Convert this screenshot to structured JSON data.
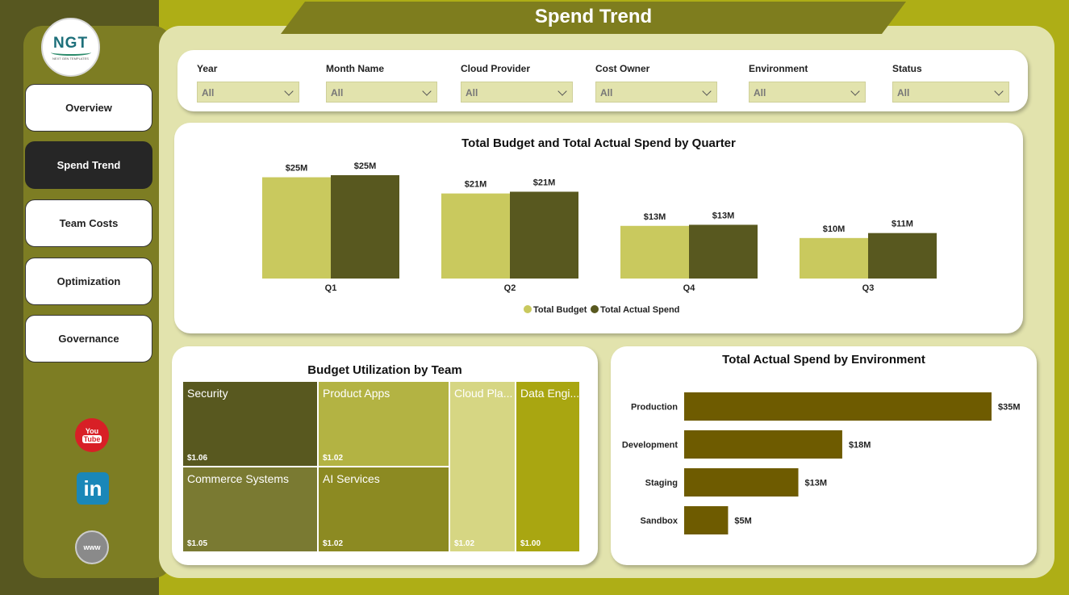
{
  "header": {
    "title": "Spend Trend"
  },
  "logo": {
    "text": "NGT",
    "subtitle": "NEXT GEN TEMPLATES"
  },
  "nav": [
    {
      "label": "Overview",
      "active": false
    },
    {
      "label": "Spend Trend",
      "active": true
    },
    {
      "label": "Team Costs",
      "active": false
    },
    {
      "label": "Optimization",
      "active": false
    },
    {
      "label": "Governance",
      "active": false
    }
  ],
  "social": {
    "youtube_top": "You",
    "youtube_bottom": "Tube",
    "linkedin": "in",
    "web": "www"
  },
  "filters": [
    {
      "label": "Year",
      "value": "All"
    },
    {
      "label": "Month Name",
      "value": "All"
    },
    {
      "label": "Cloud Provider",
      "value": "All"
    },
    {
      "label": "Cost Owner",
      "value": "All"
    },
    {
      "label": "Environment",
      "value": "All"
    },
    {
      "label": "Status",
      "value": "All"
    }
  ],
  "colors": {
    "budget": "#c9c95e",
    "actual": "#58581f",
    "env_bar": "#6e5b00"
  },
  "chart_data": [
    {
      "type": "bar",
      "title": "Total Budget and Total Actual Spend by Quarter",
      "categories": [
        "Q1",
        "Q2",
        "Q4",
        "Q3"
      ],
      "series": [
        {
          "name": "Total Budget",
          "values": [
            25,
            21,
            13,
            10
          ],
          "labels": [
            "$25M",
            "$21M",
            "$13M",
            "$10M"
          ]
        },
        {
          "name": "Total Actual Spend",
          "values": [
            25,
            21,
            13,
            11
          ],
          "labels": [
            "$25M",
            "$21M",
            "$13M",
            "$11M"
          ]
        }
      ],
      "unit": "M",
      "legend": "bottom-center",
      "grid": false
    },
    {
      "type": "treemap",
      "title": "Budget Utilization by Team",
      "items": [
        {
          "name": "Security",
          "value": 1.06,
          "label": "$1.06",
          "color": "#58581f"
        },
        {
          "name": "Product Apps",
          "value": 1.02,
          "label": "$1.02",
          "color": "#b3b343"
        },
        {
          "name": "Cloud Pla...",
          "value": 1.02,
          "label": "$1.02",
          "color": "#d6d683"
        },
        {
          "name": "Data Engi...",
          "value": 1.0,
          "label": "$1.00",
          "color": "#a9a611"
        },
        {
          "name": "Commerce Systems",
          "value": 1.05,
          "label": "$1.05",
          "color": "#7a7a32"
        },
        {
          "name": "AI Services",
          "value": 1.02,
          "label": "$1.02",
          "color": "#8c8a22"
        }
      ]
    },
    {
      "type": "bar",
      "orientation": "horizontal",
      "title": "Total Actual Spend by Environment",
      "categories": [
        "Production",
        "Development",
        "Staging",
        "Sandbox"
      ],
      "values": [
        35,
        18,
        13,
        5
      ],
      "labels": [
        "$35M",
        "$18M",
        "$13M",
        "$5M"
      ],
      "unit": "M",
      "grid": false
    }
  ]
}
